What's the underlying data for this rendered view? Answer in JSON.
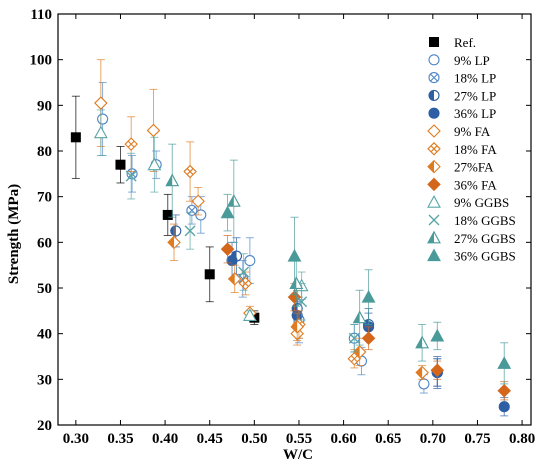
{
  "chart_data": {
    "type": "scatter",
    "xlabel": "W/C",
    "ylabel": "Strength (MPa)",
    "xlim": [
      0.28,
      0.81
    ],
    "ylim": [
      20,
      110
    ],
    "xticks": [
      "0.30",
      "0.35",
      "0.40",
      "0.45",
      "0.50",
      "0.55",
      "0.60",
      "0.65",
      "0.70",
      "0.75",
      "0.80"
    ],
    "yticks": [
      "20",
      "30",
      "40",
      "50",
      "60",
      "70",
      "80",
      "90",
      "100",
      "110"
    ],
    "legend_position": "right",
    "series": [
      {
        "name": "Ref.",
        "marker": "square",
        "color": "#000000",
        "points": [
          {
            "x": 0.3,
            "y": 83.0,
            "err": 9.0
          },
          {
            "x": 0.35,
            "y": 77.0,
            "err": 4.0
          },
          {
            "x": 0.403,
            "y": 66.0,
            "err": 4.5
          },
          {
            "x": 0.45,
            "y": 53.0,
            "err": 6.0
          },
          {
            "x": 0.5,
            "y": 43.5,
            "err": 1.5
          }
        ]
      },
      {
        "name": "9% LP",
        "marker": "circle-open",
        "color": "#4f86c6",
        "points": [
          {
            "x": 0.33,
            "y": 87.0,
            "err": 8.0
          },
          {
            "x": 0.39,
            "y": 77.0,
            "err": 3.0
          },
          {
            "x": 0.44,
            "y": 66.0,
            "err": 4.0
          },
          {
            "x": 0.495,
            "y": 56.0,
            "err": 5.0
          },
          {
            "x": 0.55,
            "y": 43.0,
            "err": 5.0
          },
          {
            "x": 0.62,
            "y": 34.0,
            "err": 3.0
          },
          {
            "x": 0.69,
            "y": 29.0,
            "err": 2.0
          },
          {
            "x": 0.705,
            "y": 31.5,
            "err": 3.0
          }
        ]
      },
      {
        "name": "18% LP",
        "marker": "circle-x",
        "color": "#4f86c6",
        "points": [
          {
            "x": 0.363,
            "y": 75.0,
            "err": 4.0
          },
          {
            "x": 0.43,
            "y": 67.0,
            "err": 3.0
          },
          {
            "x": 0.487,
            "y": 52.0,
            "err": 4.0
          },
          {
            "x": 0.55,
            "y": 43.0,
            "err": 4.0
          },
          {
            "x": 0.612,
            "y": 39.0,
            "err": 3.0
          }
        ]
      },
      {
        "name": "27% LP",
        "marker": "circle-half",
        "color": "#2e5ea3",
        "points": [
          {
            "x": 0.412,
            "y": 62.5,
            "err": 3.5
          },
          {
            "x": 0.48,
            "y": 57.0,
            "err": 4.0
          },
          {
            "x": 0.548,
            "y": 45.5,
            "err": 4.0
          },
          {
            "x": 0.628,
            "y": 42.0,
            "err": 3.5
          },
          {
            "x": 0.705,
            "y": 31.5,
            "err": 3.5
          }
        ]
      },
      {
        "name": "36% LP",
        "marker": "circle",
        "color": "#2e5ea3",
        "points": [
          {
            "x": 0.475,
            "y": 56.0,
            "err": 4.0
          },
          {
            "x": 0.548,
            "y": 44.0,
            "err": 4.0
          },
          {
            "x": 0.628,
            "y": 41.5,
            "err": 3.0
          },
          {
            "x": 0.705,
            "y": 31.5,
            "err": 3.0
          },
          {
            "x": 0.78,
            "y": 24.0,
            "err": 2.0
          }
        ]
      },
      {
        "name": "9% FA",
        "marker": "diamond-open",
        "color": "#e07b20",
        "points": [
          {
            "x": 0.328,
            "y": 90.5,
            "err": 9.5
          },
          {
            "x": 0.387,
            "y": 84.5,
            "err": 9.0
          },
          {
            "x": 0.437,
            "y": 69.0,
            "err": 3.0
          },
          {
            "x": 0.495,
            "y": 44.5,
            "err": 1.5
          },
          {
            "x": 0.548,
            "y": 40.0,
            "err": 2.5
          }
        ]
      },
      {
        "name": "18% FA",
        "marker": "diamond-x",
        "color": "#e07b20",
        "points": [
          {
            "x": 0.362,
            "y": 81.5,
            "err": 6.0
          },
          {
            "x": 0.428,
            "y": 75.5,
            "err": 6.5
          },
          {
            "x": 0.49,
            "y": 51.0,
            "err": 2.5
          },
          {
            "x": 0.55,
            "y": 42.0,
            "err": 3.0
          },
          {
            "x": 0.612,
            "y": 34.5,
            "err": 2.0
          }
        ]
      },
      {
        "name": "27%FA",
        "marker": "diamond-half",
        "color": "#e07b20",
        "points": [
          {
            "x": 0.41,
            "y": 60.0,
            "err": 4.0
          },
          {
            "x": 0.478,
            "y": 52.0,
            "err": 3.0
          },
          {
            "x": 0.548,
            "y": 41.5,
            "err": 3.0
          },
          {
            "x": 0.618,
            "y": 36.0,
            "err": 3.0
          },
          {
            "x": 0.688,
            "y": 31.5,
            "err": 1.5
          }
        ]
      },
      {
        "name": "36% FA",
        "marker": "diamond",
        "color": "#d4661c",
        "points": [
          {
            "x": 0.47,
            "y": 58.5,
            "err": 3.0
          },
          {
            "x": 0.545,
            "y": 48.0,
            "err": 3.0
          },
          {
            "x": 0.628,
            "y": 39.0,
            "err": 2.5
          },
          {
            "x": 0.705,
            "y": 32.0,
            "err": 2.0
          },
          {
            "x": 0.78,
            "y": 27.5,
            "err": 2.0
          }
        ]
      },
      {
        "name": "9% GGBS",
        "marker": "triangle-open",
        "color": "#5aa6a6",
        "points": [
          {
            "x": 0.328,
            "y": 84.0,
            "err": 5.0
          },
          {
            "x": 0.388,
            "y": 77.0,
            "err": 6.0
          },
          {
            "x": 0.495,
            "y": 44.0,
            "err": 1.0
          },
          {
            "x": 0.553,
            "y": 50.5,
            "err": 3.0
          }
        ]
      },
      {
        "name": "18% GGBS",
        "marker": "x",
        "color": "#5aa6a6",
        "points": [
          {
            "x": 0.362,
            "y": 74.5,
            "err": 5.0
          },
          {
            "x": 0.428,
            "y": 62.5,
            "err": 4.0
          },
          {
            "x": 0.488,
            "y": 53.5,
            "err": 4.0
          },
          {
            "x": 0.553,
            "y": 47.0,
            "err": 4.0
          },
          {
            "x": 0.612,
            "y": 39.0,
            "err": 3.0
          }
        ]
      },
      {
        "name": "27% GGBS",
        "marker": "triangle-half",
        "color": "#4a9a9a",
        "points": [
          {
            "x": 0.408,
            "y": 73.5,
            "err": 8.0
          },
          {
            "x": 0.477,
            "y": 69.0,
            "err": 9.0
          },
          {
            "x": 0.547,
            "y": 51.0,
            "err": 5.0
          },
          {
            "x": 0.618,
            "y": 43.5,
            "err": 6.0
          },
          {
            "x": 0.688,
            "y": 38.0,
            "err": 4.0
          }
        ]
      },
      {
        "name": "36% GGBS",
        "marker": "triangle",
        "color": "#4a9a9a",
        "points": [
          {
            "x": 0.47,
            "y": 66.5,
            "err": 4.0
          },
          {
            "x": 0.545,
            "y": 57.0,
            "err": 8.5
          },
          {
            "x": 0.628,
            "y": 48.0,
            "err": 6.0
          },
          {
            "x": 0.705,
            "y": 39.5,
            "err": 3.0
          },
          {
            "x": 0.78,
            "y": 33.5,
            "err": 4.5
          }
        ]
      }
    ]
  }
}
